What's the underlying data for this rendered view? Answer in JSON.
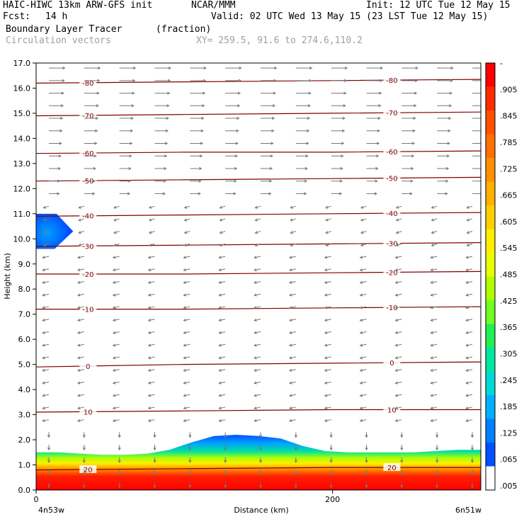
{
  "header": {
    "model": "HAIC-HIWC 13km ARW-GFS init",
    "org": "NCAR/MMM",
    "init": "Init: 12 UTC Tue 12 May 15",
    "fcst_label": "Fcst:",
    "fcst_value": "14 h",
    "valid": "Valid: 02 UTC Wed 13 May 15 (23 LST Tue 12 May 15)",
    "field_name": "Boundary Layer Tracer",
    "field_unit": "(fraction)",
    "vector_name": "Circulation vectors",
    "xy_range": "XY= 259.5, 91.6 to 274.6,110.2"
  },
  "chart_data": {
    "type": "heatmap",
    "xlabel": "Distance (km)",
    "ylabel": "Height (km)",
    "xlim": [
      0,
      300
    ],
    "ylim": [
      0,
      17
    ],
    "x_ticks": [
      {
        "v": 0,
        "t": "0"
      },
      {
        "v": 200,
        "t": "200"
      }
    ],
    "y_ticks": [
      "0.0",
      "1.0",
      "2.0",
      "3.0",
      "4.0",
      "5.0",
      "6.0",
      "7.0",
      "8.0",
      "9.0",
      "10.0",
      "11.0",
      "12.0",
      "13.0",
      "14.0",
      "15.0",
      "16.0",
      "17.0"
    ],
    "x_end_labels": {
      "left": "4n53w",
      "right": "6n51w"
    },
    "colorbar": {
      "labels": [
        "-",
        ".905",
        ".845",
        ".785",
        ".725",
        ".665",
        ".605",
        ".545",
        ".485",
        ".425",
        ".365",
        ".305",
        ".245",
        ".185",
        ".125",
        ".065",
        ".005"
      ],
      "colors": [
        "#ff0000",
        "#ff2a00",
        "#ff5000",
        "#ff7000",
        "#ff9000",
        "#ffb000",
        "#ffd000",
        "#ffee00",
        "#e8ff00",
        "#b0ff00",
        "#70ff20",
        "#20f050",
        "#00e8a0",
        "#00d8d8",
        "#00b0ff",
        "#0080ff",
        "#0050ff",
        "#ffffff"
      ]
    },
    "temperature_contours": [
      {
        "label": "-80",
        "levels": [
          16.2,
          16.25,
          16.3,
          16.35
        ]
      },
      {
        "label": "-70",
        "levels": [
          14.9,
          14.95,
          15.0,
          15.05
        ]
      },
      {
        "label": "-60",
        "levels": [
          13.4,
          13.45,
          13.45,
          13.5
        ]
      },
      {
        "label": "-50",
        "levels": [
          12.3,
          12.35,
          12.4,
          12.45
        ]
      },
      {
        "label": "-40",
        "levels": [
          10.9,
          10.95,
          11.0,
          11.05
        ]
      },
      {
        "label": "-30",
        "levels": [
          9.7,
          9.75,
          9.8,
          9.85
        ]
      },
      {
        "label": "-20",
        "levels": [
          8.6,
          8.6,
          8.65,
          8.7
        ]
      },
      {
        "label": "-10",
        "levels": [
          7.2,
          7.2,
          7.25,
          7.3
        ]
      },
      {
        "label": "0",
        "levels": [
          4.9,
          5.0,
          5.05,
          5.1
        ]
      },
      {
        "label": "10",
        "levels": [
          3.1,
          3.15,
          3.2,
          3.2
        ]
      },
      {
        "label": "20",
        "levels": [
          0.8,
          0.85,
          0.9,
          0.9
        ]
      }
    ],
    "tracer_top_km": [
      1.5,
      1.5,
      1.45,
      1.4,
      1.4,
      1.45,
      1.6,
      1.9,
      2.15,
      2.2,
      2.15,
      2.05,
      1.75,
      1.55,
      1.5,
      1.5,
      1.5,
      1.5,
      1.55,
      1.6,
      1.6
    ],
    "upper_blob": {
      "x_km": [
        0,
        25
      ],
      "z_km": [
        9.6,
        11.0
      ]
    }
  }
}
